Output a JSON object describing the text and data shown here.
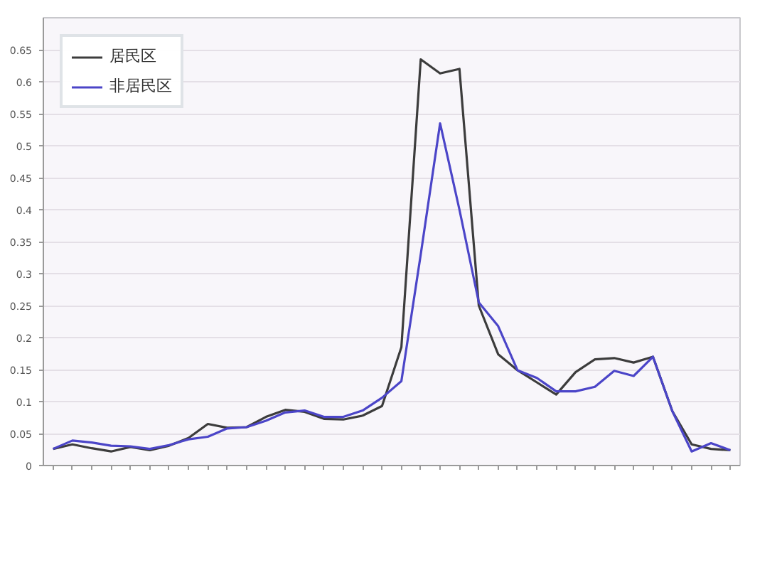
{
  "chart_data": {
    "type": "line",
    "categories": [
      null,
      null,
      null,
      null,
      null,
      null,
      null,
      null,
      null,
      null,
      null,
      null,
      null,
      null,
      null,
      null,
      null,
      null,
      null,
      null,
      null,
      null,
      null,
      null,
      null,
      null,
      null,
      null,
      null,
      null,
      null,
      null,
      null,
      null,
      null,
      null
    ],
    "series": [
      {
        "name": "居民区",
        "color": "#3c3c3c",
        "values": [
          0.026,
          0.033,
          0.027,
          0.022,
          0.029,
          0.024,
          0.031,
          0.043,
          0.065,
          0.059,
          0.06,
          0.076,
          0.087,
          0.084,
          0.073,
          0.072,
          0.078,
          0.093,
          0.185,
          0.635,
          0.613,
          0.62,
          0.25,
          0.174,
          0.149,
          0.13,
          0.111,
          0.146,
          0.166,
          0.168,
          0.161,
          0.17,
          0.085,
          0.033,
          0.026,
          0.024
        ]
      },
      {
        "name": "非居民区",
        "color": "#4b45c8",
        "values": [
          0.026,
          0.039,
          0.036,
          0.031,
          0.03,
          0.026,
          0.032,
          0.041,
          0.045,
          0.058,
          0.06,
          0.07,
          0.083,
          0.086,
          0.076,
          0.076,
          0.086,
          0.106,
          0.132,
          0.33,
          0.535,
          0.4,
          0.255,
          0.218,
          0.149,
          0.137,
          0.116,
          0.116,
          0.123,
          0.148,
          0.14,
          0.17,
          0.085,
          0.022,
          0.035,
          0.024
        ]
      }
    ],
    "ylim": [
      0,
      0.7
    ],
    "yticks": [
      0,
      0.05,
      0.1,
      0.15,
      0.2,
      0.25,
      0.3,
      0.35,
      0.4,
      0.45,
      0.5,
      0.55,
      0.6,
      0.65
    ],
    "grid": "y",
    "legend": "top left",
    "line_style": "solid"
  }
}
